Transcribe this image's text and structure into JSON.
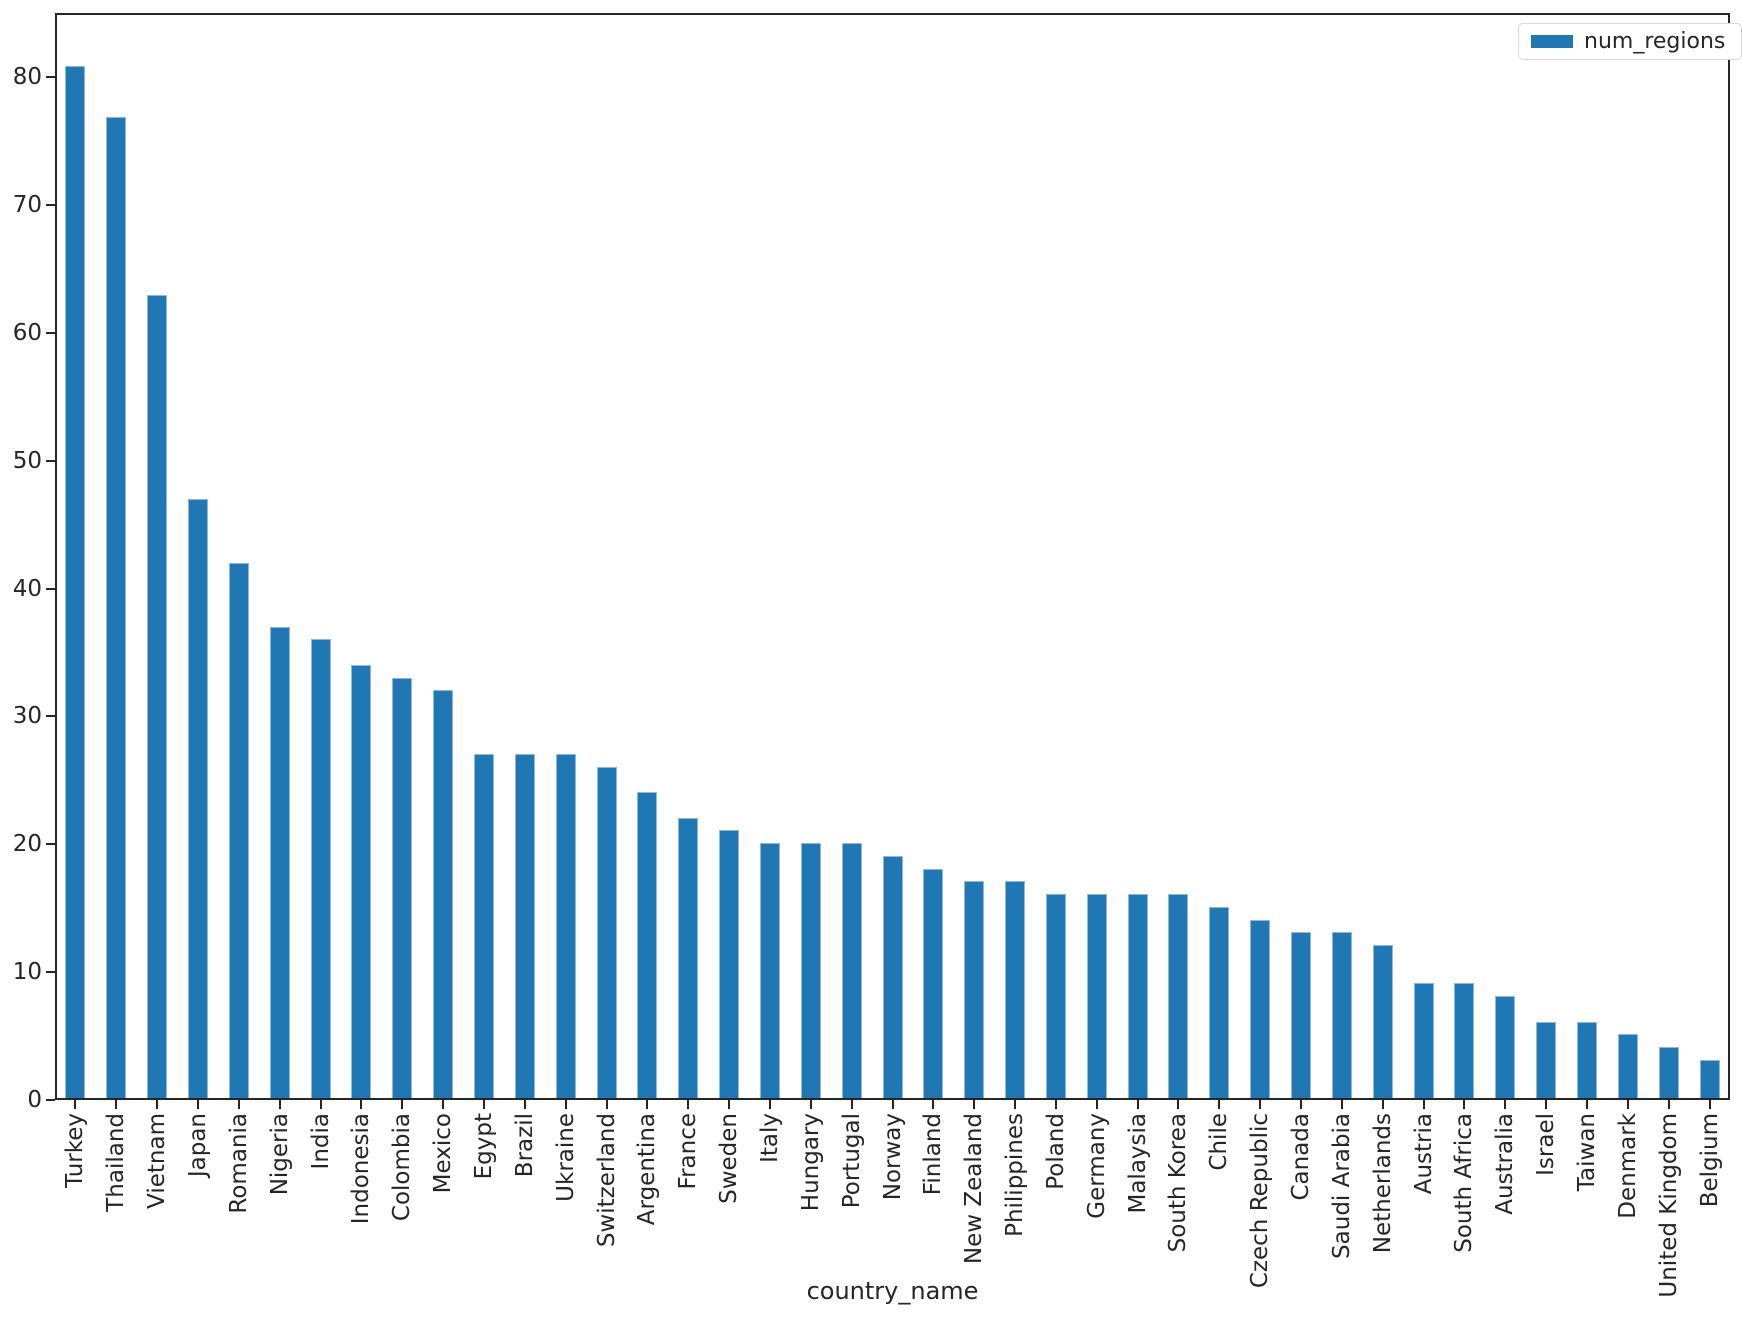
{
  "chart_data": {
    "type": "bar",
    "title": "",
    "xlabel": "country_name",
    "ylabel": "",
    "legend": [
      "num_regions"
    ],
    "legend_position": "upper right",
    "grid": false,
    "bar_color": "#1f77b4",
    "ylim": [
      0,
      85
    ],
    "yticks": [
      0,
      10,
      20,
      30,
      40,
      50,
      60,
      70,
      80
    ],
    "categories": [
      "Turkey",
      "Thailand",
      "Vietnam",
      "Japan",
      "Romania",
      "Nigeria",
      "India",
      "Indonesia",
      "Colombia",
      "Mexico",
      "Egypt",
      "Brazil",
      "Ukraine",
      "Switzerland",
      "Argentina",
      "France",
      "Sweden",
      "Italy",
      "Hungary",
      "Portugal",
      "Norway",
      "Finland",
      "New Zealand",
      "Philippines",
      "Poland",
      "Germany",
      "Malaysia",
      "South Korea",
      "Chile",
      "Czech Republic",
      "Canada",
      "Saudi Arabia",
      "Netherlands",
      "Austria",
      "South Africa",
      "Australia",
      "Israel",
      "Taiwan",
      "Denmark",
      "United Kingdom",
      "Belgium"
    ],
    "series": [
      {
        "name": "num_regions",
        "values": [
          81,
          77,
          63,
          47,
          42,
          37,
          36,
          34,
          33,
          32,
          27,
          27,
          27,
          26,
          24,
          22,
          21,
          20,
          20,
          20,
          19,
          18,
          17,
          17,
          16,
          16,
          16,
          16,
          15,
          14,
          13,
          13,
          12,
          9,
          9,
          8,
          6,
          6,
          5,
          4,
          3
        ]
      }
    ]
  },
  "colors": {
    "bar": "#1f77b4",
    "bar_edge": "#8fb8da",
    "spine": "#262626",
    "text": "#262626",
    "legend_border": "#d8d8d8",
    "background": "#ffffff"
  }
}
